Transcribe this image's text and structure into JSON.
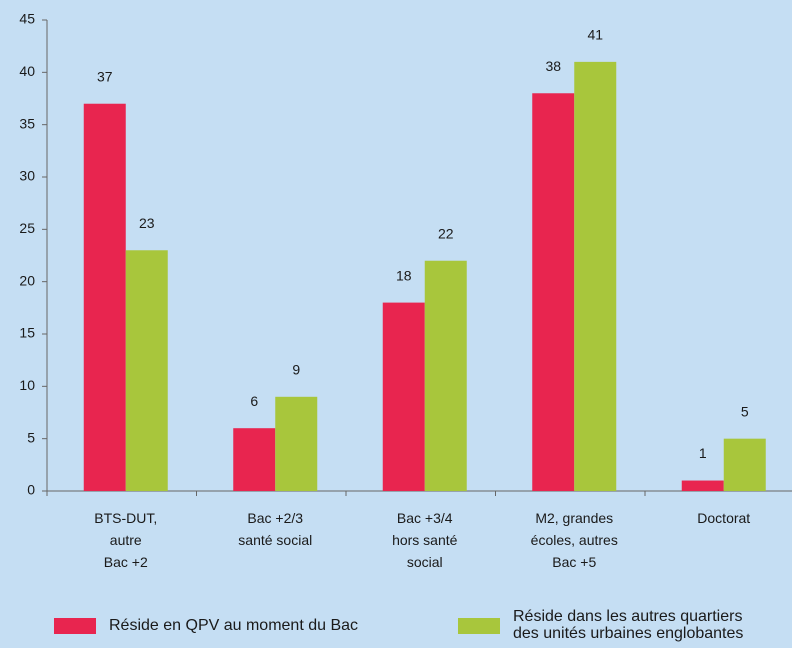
{
  "chart_data": {
    "type": "bar",
    "categories": [
      "BTS-DUT,\nautre\nBac +2",
      "Bac +2/3\nsanté social",
      "Bac +3/4\nhors santé\nsocial",
      "M2, grandes\nécoles, autres\nBac +5",
      "Doctorat"
    ],
    "series": [
      {
        "name": "Réside en QPV au moment du Bac",
        "color": "#e8254f",
        "values": [
          37,
          6,
          18,
          38,
          1
        ]
      },
      {
        "name": "Réside dans les autres quartiers\ndes unités urbaines englobantes",
        "color": "#a8c63c",
        "values": [
          23,
          9,
          22,
          41,
          5
        ]
      }
    ],
    "ylim": [
      0,
      45
    ],
    "yticks": [
      0,
      5,
      10,
      15,
      20,
      25,
      30,
      35,
      40,
      45
    ],
    "grid": false,
    "legend": "bottom"
  }
}
